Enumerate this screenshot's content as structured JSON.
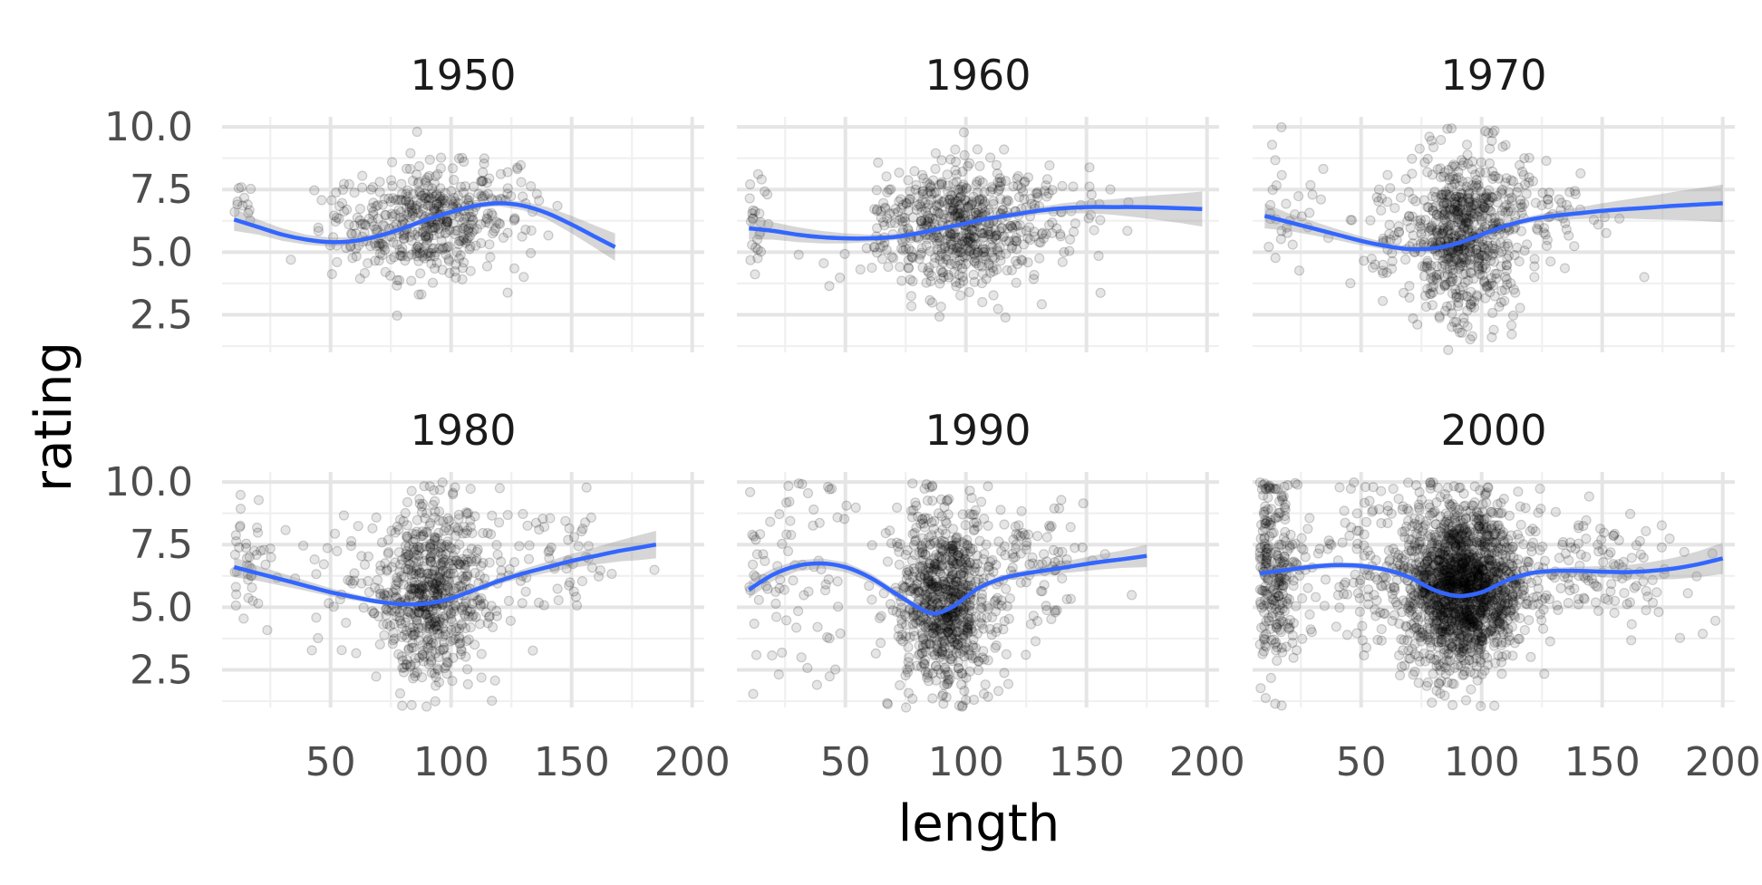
{
  "chart_data": {
    "type": "scatter",
    "layout": "facet_wrap 2 rows x 3 columns",
    "xlabel": "length",
    "ylabel": "rating",
    "xlim": [
      5,
      205
    ],
    "ylim": [
      1.0,
      10.4
    ],
    "x_ticks": [
      50,
      100,
      150,
      200
    ],
    "x_tick_labels": [
      "50",
      "100",
      "150",
      "200"
    ],
    "y_ticks": [
      2.5,
      5.0,
      7.5,
      10.0
    ],
    "y_tick_labels": [
      "2.5",
      "5.0",
      "7.5",
      "10.0"
    ],
    "grid": true,
    "theme": "minimal",
    "colors": {
      "points": "#000000",
      "smooth_line": "#3366FF",
      "ribbon": "#999999",
      "grid": "#e5e5e5"
    },
    "panels": [
      {
        "name": "1950",
        "points": {
          "count": 500,
          "clusters": [
            {
              "cx": 92,
              "cy": 6.2,
              "sx": 14,
              "sy": 1.1,
              "n": 380
            },
            {
              "cx": 60,
              "cy": 5.6,
              "sx": 10,
              "sy": 1.0,
              "n": 60
            },
            {
              "cx": 14,
              "cy": 7.2,
              "sx": 2,
              "sy": 0.6,
              "n": 12
            },
            {
              "cx": 125,
              "cy": 7.2,
              "sx": 8,
              "sy": 1.0,
              "n": 40
            }
          ],
          "xrange": [
            10,
            170
          ]
        },
        "smooth": {
          "x": [
            10,
            20,
            30,
            40,
            50,
            60,
            70,
            80,
            90,
            100,
            110,
            120,
            130,
            140,
            150,
            160,
            168
          ],
          "y": [
            6.3,
            6.0,
            5.7,
            5.5,
            5.4,
            5.45,
            5.65,
            5.95,
            6.3,
            6.6,
            6.85,
            6.95,
            6.85,
            6.55,
            6.1,
            5.6,
            5.2
          ],
          "se": [
            0.45,
            0.3,
            0.25,
            0.2,
            0.18,
            0.15,
            0.13,
            0.12,
            0.1,
            0.1,
            0.1,
            0.12,
            0.18,
            0.25,
            0.35,
            0.45,
            0.55
          ]
        }
      },
      {
        "name": "1960",
        "points": {
          "count": 700,
          "clusters": [
            {
              "cx": 95,
              "cy": 6.0,
              "sx": 16,
              "sy": 1.3,
              "n": 560
            },
            {
              "cx": 130,
              "cy": 6.7,
              "sx": 15,
              "sy": 1.0,
              "n": 70
            },
            {
              "cx": 12,
              "cy": 6.2,
              "sx": 3,
              "sy": 1.3,
              "n": 25
            }
          ],
          "xrange": [
            10,
            200
          ]
        },
        "smooth": {
          "x": [
            10,
            20,
            30,
            40,
            50,
            60,
            70,
            80,
            90,
            100,
            110,
            120,
            130,
            140,
            150,
            160,
            170,
            180,
            190,
            198
          ],
          "y": [
            5.95,
            5.85,
            5.7,
            5.6,
            5.55,
            5.55,
            5.6,
            5.75,
            5.95,
            6.15,
            6.35,
            6.5,
            6.65,
            6.75,
            6.8,
            6.8,
            6.8,
            6.78,
            6.75,
            6.72
          ],
          "se": [
            0.45,
            0.35,
            0.3,
            0.25,
            0.2,
            0.15,
            0.12,
            0.1,
            0.09,
            0.09,
            0.1,
            0.12,
            0.15,
            0.2,
            0.25,
            0.3,
            0.4,
            0.5,
            0.6,
            0.7
          ]
        }
      },
      {
        "name": "1970",
        "points": {
          "count": 800,
          "clusters": [
            {
              "cx": 92,
              "cy": 5.6,
              "sx": 11,
              "sy": 1.6,
              "n": 620
            },
            {
              "cx": 125,
              "cy": 6.6,
              "sx": 15,
              "sy": 1.2,
              "n": 80
            },
            {
              "cx": 20,
              "cy": 6.8,
              "sx": 6,
              "sy": 1.5,
              "n": 30
            },
            {
              "cx": 60,
              "cy": 5.8,
              "sx": 10,
              "sy": 1.8,
              "n": 40
            }
          ],
          "xrange": [
            10,
            200
          ]
        },
        "smooth": {
          "x": [
            10,
            20,
            30,
            40,
            50,
            60,
            70,
            80,
            90,
            100,
            110,
            120,
            130,
            140,
            150,
            160,
            170,
            180,
            190,
            200
          ],
          "y": [
            6.45,
            6.2,
            5.95,
            5.7,
            5.45,
            5.25,
            5.12,
            5.15,
            5.35,
            5.7,
            6.05,
            6.3,
            6.45,
            6.55,
            6.65,
            6.72,
            6.78,
            6.85,
            6.9,
            6.95
          ],
          "se": [
            0.5,
            0.35,
            0.28,
            0.22,
            0.18,
            0.14,
            0.1,
            0.08,
            0.07,
            0.08,
            0.1,
            0.13,
            0.18,
            0.23,
            0.3,
            0.38,
            0.47,
            0.56,
            0.65,
            0.75
          ]
        }
      },
      {
        "name": "1980",
        "points": {
          "count": 800,
          "clusters": [
            {
              "cx": 92,
              "cy": 5.6,
              "sx": 11,
              "sy": 1.7,
              "n": 630
            },
            {
              "cx": 140,
              "cy": 6.8,
              "sx": 18,
              "sy": 1.2,
              "n": 70
            },
            {
              "cx": 15,
              "cy": 7.0,
              "sx": 5,
              "sy": 1.4,
              "n": 40
            },
            {
              "cx": 55,
              "cy": 5.8,
              "sx": 10,
              "sy": 1.8,
              "n": 30
            }
          ],
          "xrange": [
            10,
            185
          ]
        },
        "smooth": {
          "x": [
            10,
            20,
            30,
            40,
            50,
            60,
            70,
            80,
            90,
            100,
            110,
            120,
            130,
            140,
            150,
            160,
            170,
            178,
            185
          ],
          "y": [
            6.6,
            6.35,
            6.1,
            5.85,
            5.6,
            5.4,
            5.22,
            5.12,
            5.15,
            5.35,
            5.7,
            6.05,
            6.35,
            6.6,
            6.85,
            7.05,
            7.25,
            7.38,
            7.5
          ],
          "se": [
            0.4,
            0.3,
            0.25,
            0.2,
            0.16,
            0.13,
            0.1,
            0.08,
            0.07,
            0.08,
            0.1,
            0.13,
            0.17,
            0.22,
            0.28,
            0.35,
            0.42,
            0.5,
            0.55
          ]
        }
      },
      {
        "name": "1990",
        "points": {
          "count": 1000,
          "clusters": [
            {
              "cx": 90,
              "cy": 5.2,
              "sx": 10,
              "sy": 1.8,
              "n": 750
            },
            {
              "cx": 125,
              "cy": 6.5,
              "sx": 18,
              "sy": 1.4,
              "n": 120
            },
            {
              "cx": 30,
              "cy": 6.5,
              "sx": 14,
              "sy": 2.0,
              "n": 80
            }
          ],
          "xrange": [
            10,
            178
          ]
        },
        "smooth": {
          "x": [
            10,
            20,
            30,
            40,
            50,
            60,
            70,
            80,
            87,
            95,
            105,
            115,
            125,
            135,
            145,
            155,
            165,
            175
          ],
          "y": [
            5.7,
            6.3,
            6.65,
            6.75,
            6.6,
            6.2,
            5.6,
            5.0,
            4.75,
            5.05,
            5.75,
            6.15,
            6.35,
            6.5,
            6.65,
            6.8,
            6.92,
            7.05
          ],
          "se": [
            0.35,
            0.25,
            0.22,
            0.2,
            0.2,
            0.18,
            0.15,
            0.1,
            0.08,
            0.08,
            0.1,
            0.12,
            0.15,
            0.2,
            0.25,
            0.3,
            0.35,
            0.45
          ]
        }
      },
      {
        "name": "2000",
        "points": {
          "count": 2200,
          "clusters": [
            {
              "cx": 92,
              "cy": 5.8,
              "sx": 12,
              "sy": 1.6,
              "n": 1600
            },
            {
              "cx": 14,
              "cy": 6.5,
              "sx": 5,
              "sy": 2.0,
              "n": 250
            },
            {
              "cx": 55,
              "cy": 6.8,
              "sx": 18,
              "sy": 1.8,
              "n": 150
            },
            {
              "cx": 140,
              "cy": 6.5,
              "sx": 22,
              "sy": 1.3,
              "n": 150
            }
          ],
          "xrange": [
            8,
            200
          ]
        },
        "smooth": {
          "x": [
            8,
            20,
            30,
            40,
            50,
            60,
            70,
            80,
            90,
            100,
            110,
            120,
            130,
            140,
            150,
            160,
            170,
            180,
            190,
            200
          ],
          "y": [
            6.35,
            6.5,
            6.62,
            6.68,
            6.65,
            6.5,
            6.2,
            5.7,
            5.45,
            5.6,
            6.05,
            6.35,
            6.45,
            6.45,
            6.42,
            6.4,
            6.45,
            6.55,
            6.72,
            6.95
          ],
          "se": [
            0.15,
            0.12,
            0.12,
            0.12,
            0.12,
            0.11,
            0.09,
            0.06,
            0.05,
            0.05,
            0.07,
            0.1,
            0.13,
            0.17,
            0.22,
            0.28,
            0.35,
            0.43,
            0.52,
            0.62
          ]
        }
      }
    ]
  }
}
